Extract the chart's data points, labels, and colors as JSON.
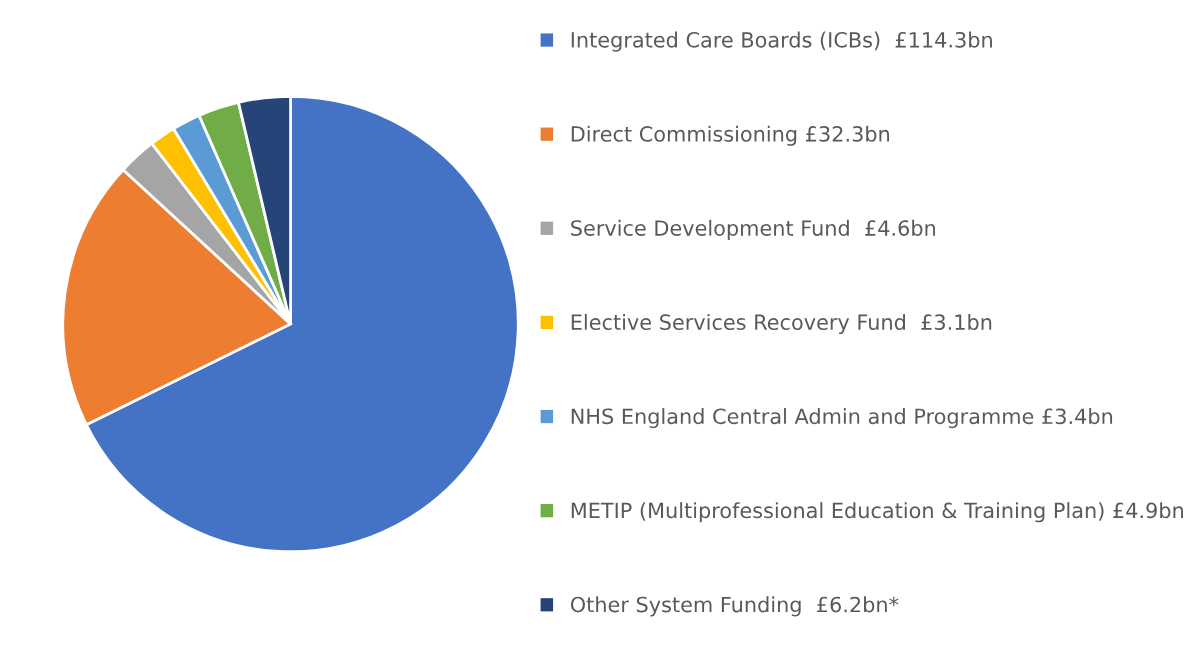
{
  "chart_data": {
    "type": "pie",
    "categories": [
      "Integrated Care Boards (ICBs)  £114.3bn",
      "Direct Commissioning £32.3bn",
      "Service Development Fund  £4.6bn",
      "Elective Services Recovery Fund  £3.1bn",
      "NHS England Central Admin and Programme £3.4bn",
      "METIP (Multiprofessional Education & Training Plan) £4.9bn",
      "Other System Funding  £6.2bn*"
    ],
    "values": [
      114.3,
      32.3,
      4.6,
      3.1,
      3.4,
      4.9,
      6.2
    ],
    "colors": [
      "#4472c4",
      "#ed7d31",
      "#a5a5a5",
      "#ffc000",
      "#5b9bd5",
      "#70ad47",
      "#264478"
    ],
    "legend": "right"
  }
}
